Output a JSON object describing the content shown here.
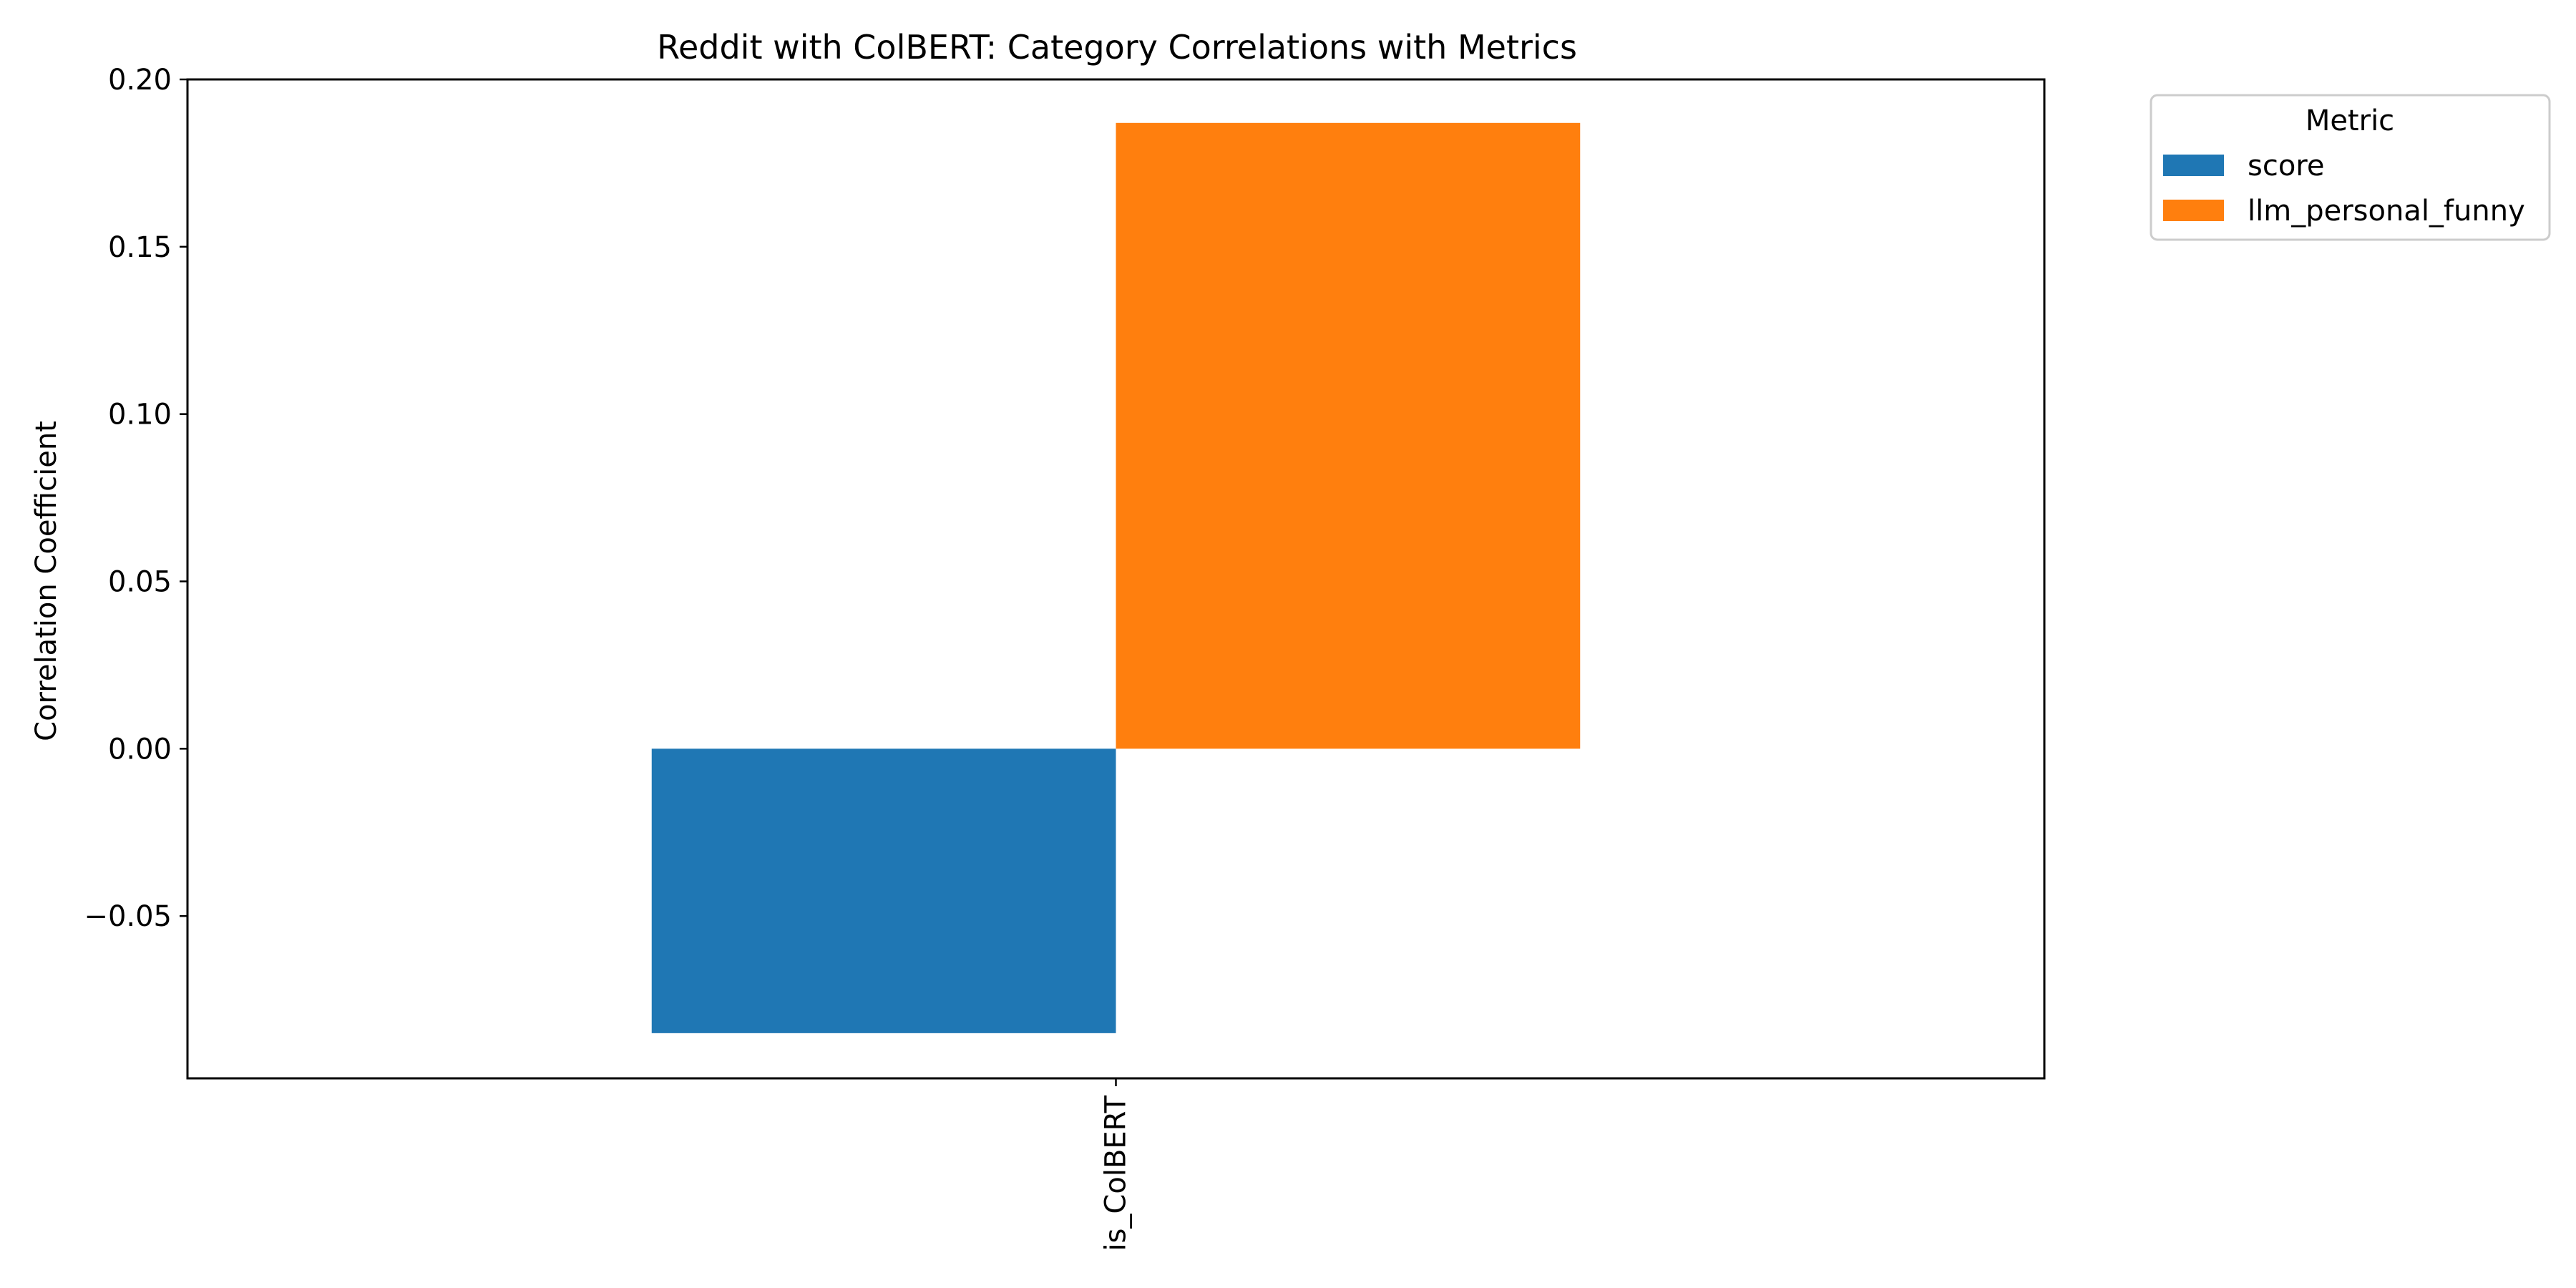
{
  "chart_data": {
    "type": "bar",
    "title": "Reddit with ColBERT: Category Correlations with Metrics",
    "xlabel": "",
    "ylabel": "Correlation Coefficient",
    "categories": [
      "is_ColBERT"
    ],
    "series": [
      {
        "name": "score",
        "values": [
          -0.085
        ],
        "color": "#1f77b4"
      },
      {
        "name": "llm_personal_funny",
        "values": [
          0.187
        ],
        "color": "#ff7f0e"
      }
    ],
    "ylim": [
      -0.0985,
      0.2
    ],
    "yticks": [
      {
        "value": -0.05,
        "label": "−0.05"
      },
      {
        "value": 0.0,
        "label": "0.00"
      },
      {
        "value": 0.05,
        "label": "0.05"
      },
      {
        "value": 0.1,
        "label": "0.10"
      },
      {
        "value": 0.15,
        "label": "0.15"
      },
      {
        "value": 0.2,
        "label": "0.20"
      }
    ],
    "legend": {
      "title": "Metric",
      "placement": "outside-right-top"
    },
    "grid": false
  }
}
